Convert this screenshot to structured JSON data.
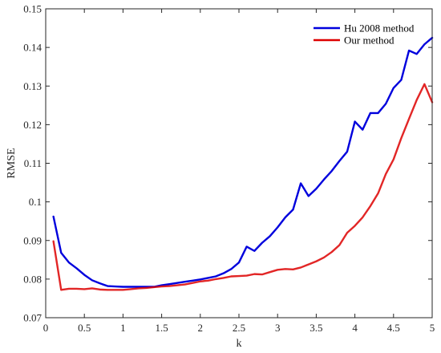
{
  "chart_data": {
    "type": "line",
    "xlabel": "k",
    "ylabel": "RMSE",
    "xlim": [
      0,
      5
    ],
    "ylim": [
      0.07,
      0.15
    ],
    "xticks": [
      0,
      0.5,
      1,
      1.5,
      2,
      2.5,
      3,
      3.5,
      4,
      4.5,
      5
    ],
    "xtick_labels": [
      "0",
      "0.5",
      "1",
      "1.5",
      "2",
      "2.5",
      "3",
      "3.5",
      "4",
      "4.5",
      "5"
    ],
    "yticks": [
      0.07,
      0.08,
      0.09,
      0.1,
      0.11,
      0.12,
      0.13,
      0.14,
      0.15
    ],
    "ytick_labels": [
      "0.07",
      "0.08",
      "0.09",
      "0.1",
      "0.11",
      "0.12",
      "0.13",
      "0.14",
      "0.15"
    ],
    "grid": false,
    "legend_position": "top-right",
    "x": [
      0.1,
      0.2,
      0.3,
      0.4,
      0.5,
      0.6,
      0.7,
      0.8,
      0.9,
      1.0,
      1.1,
      1.2,
      1.3,
      1.4,
      1.5,
      1.6,
      1.7,
      1.8,
      1.9,
      2.0,
      2.1,
      2.2,
      2.3,
      2.4,
      2.5,
      2.6,
      2.7,
      2.8,
      2.9,
      3.0,
      3.1,
      3.2,
      3.3,
      3.4,
      3.5,
      3.6,
      3.7,
      3.8,
      3.9,
      4.0,
      4.1,
      4.2,
      4.3,
      4.4,
      4.5,
      4.6,
      4.7,
      4.8,
      4.9,
      5.0
    ],
    "series": [
      {
        "name": "Hu 2008 method",
        "color": "#0000dd",
        "values": [
          0.0962,
          0.0868,
          0.0843,
          0.0828,
          0.0811,
          0.0797,
          0.0789,
          0.0782,
          0.0781,
          0.078,
          0.078,
          0.078,
          0.078,
          0.078,
          0.0784,
          0.0787,
          0.079,
          0.0793,
          0.0796,
          0.0799,
          0.0803,
          0.0807,
          0.0815,
          0.0826,
          0.0843,
          0.0884,
          0.0873,
          0.0894,
          0.0911,
          0.0934,
          0.096,
          0.098,
          0.1048,
          0.1015,
          0.1034,
          0.1058,
          0.108,
          0.1106,
          0.113,
          0.1208,
          0.1187,
          0.123,
          0.123,
          0.1254,
          0.1295,
          0.1316,
          0.1392,
          0.1383,
          0.1408,
          0.1425
        ]
      },
      {
        "name": "Our method",
        "color": "#dd0000",
        "values": [
          0.0898,
          0.0772,
          0.0775,
          0.0775,
          0.0774,
          0.0776,
          0.0773,
          0.0772,
          0.0772,
          0.0772,
          0.0774,
          0.0776,
          0.0777,
          0.0779,
          0.0781,
          0.0782,
          0.0784,
          0.0786,
          0.079,
          0.0794,
          0.0796,
          0.08,
          0.0803,
          0.0807,
          0.0808,
          0.0809,
          0.0813,
          0.0812,
          0.0818,
          0.0824,
          0.0826,
          0.0825,
          0.083,
          0.0838,
          0.0846,
          0.0856,
          0.087,
          0.0888,
          0.092,
          0.0938,
          0.096,
          0.0989,
          0.1022,
          0.1072,
          0.111,
          0.1165,
          0.1215,
          0.1264,
          0.1305,
          0.1258
        ]
      }
    ]
  }
}
